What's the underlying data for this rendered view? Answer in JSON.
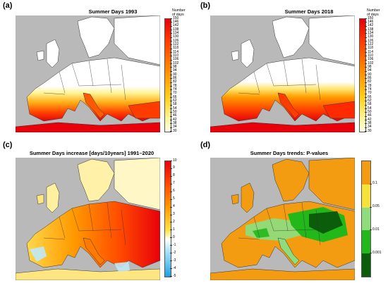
{
  "panels": {
    "a": {
      "letter": "(a)",
      "title": "Summer Days 1993",
      "cbar_title": "Number\nof days",
      "ticks": [
        "150",
        "146",
        "142",
        "138",
        "134",
        "130",
        "126",
        "122",
        "118",
        "114",
        "110",
        "106",
        "102",
        "98",
        "94",
        "90",
        "86",
        "82",
        "78",
        "74",
        "70",
        "66",
        "62",
        "58",
        "54",
        "50",
        "46",
        "42",
        "38",
        "34",
        "30"
      ]
    },
    "b": {
      "letter": "(b)",
      "title": "Summer Days 2018",
      "cbar_title": "Number\nof days",
      "ticks": [
        "150",
        "146",
        "142",
        "138",
        "134",
        "130",
        "126",
        "122",
        "118",
        "114",
        "110",
        "106",
        "102",
        "98",
        "94",
        "90",
        "86",
        "82",
        "78",
        "74",
        "70",
        "66",
        "62",
        "58",
        "54",
        "50",
        "46",
        "42",
        "38",
        "34",
        "30"
      ]
    },
    "c": {
      "letter": "(c)",
      "title": "Summer Days increase [days/10years] 1991–2020",
      "ticks": [
        "10",
        "9",
        "8",
        "7",
        "6",
        "5",
        "4",
        "3",
        "2",
        "1",
        "0",
        "-1",
        "-2",
        "-3",
        "-4",
        "-5"
      ]
    },
    "d": {
      "letter": "(d)",
      "title": "Summer Days trends: P-values",
      "ticks": [
        "0.1",
        "0.05",
        "0.01",
        "0.001"
      ]
    }
  },
  "colors": {
    "sea_gray": "#b9b9b9",
    "nodata_white": "#ffffff",
    "heat_low": "#fffbd0",
    "heat_mid": "#ffa400",
    "heat_high": "#e8000a",
    "pval_orange": "#f39c12",
    "pval_yellow": "#f7e23b",
    "pval_lightgreen": "#8fdc7c",
    "pval_green": "#22b81a",
    "pval_darkgreen": "#0b5d0b"
  }
}
